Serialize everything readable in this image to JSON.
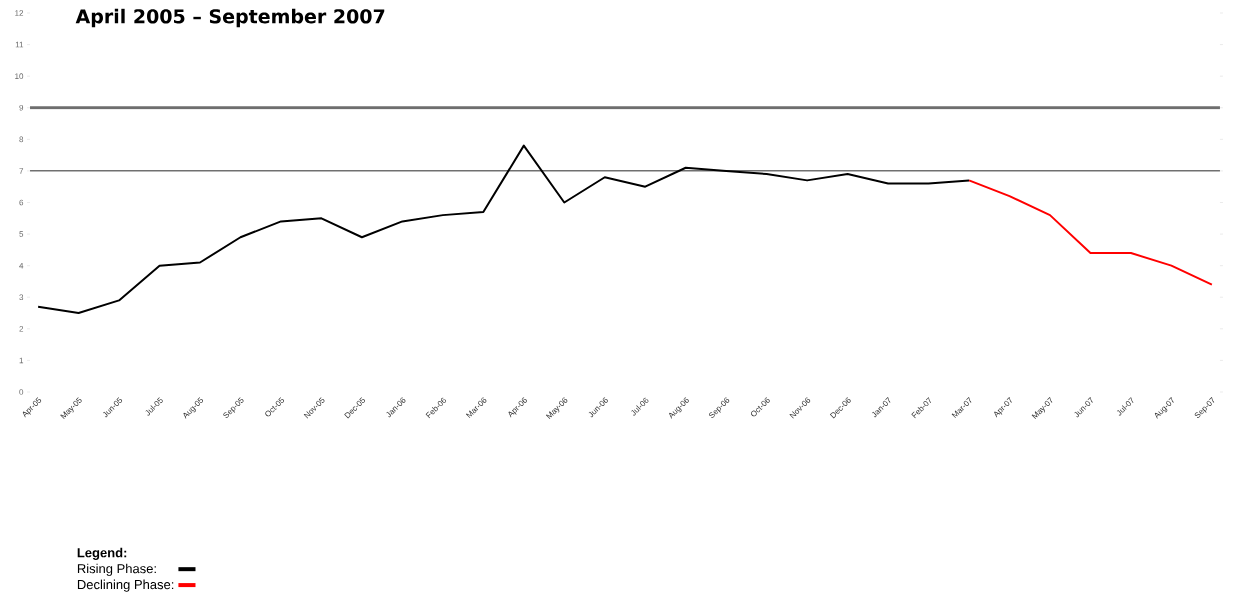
{
  "chart_data": {
    "type": "line",
    "title": "April 2005 – September 2007",
    "categories": [
      "Apr-05",
      "May-05",
      "Jun-05",
      "Jul-05",
      "Aug-05",
      "Sep-05",
      "Oct-05",
      "Nov-05",
      "Dec-05",
      "Jan-06",
      "Feb-06",
      "Mar-06",
      "Apr-06",
      "May-06",
      "Jun-06",
      "Jul-06",
      "Aug-06",
      "Sep-06",
      "Oct-06",
      "Nov-06",
      "Dec-06",
      "Jan-07",
      "Feb-07",
      "Mar-07",
      "Apr-07",
      "May-07",
      "Jun-07",
      "Jul-07",
      "Aug-07",
      "Sep-07"
    ],
    "series": [
      {
        "name": "Rising Phase:",
        "color": "#000000",
        "values": [
          2.7,
          2.5,
          2.9,
          4.0,
          4.1,
          4.9,
          5.4,
          5.5,
          4.9,
          5.4,
          5.6,
          5.7,
          7.8,
          6.0,
          6.8,
          6.5,
          7.1,
          7.0,
          6.9,
          6.7,
          6.9,
          6.6,
          6.6,
          6.7,
          null,
          null,
          null,
          null,
          null,
          null
        ]
      },
      {
        "name": "Declining Phase:",
        "color": "#ff0000",
        "values": [
          null,
          null,
          null,
          null,
          null,
          null,
          null,
          null,
          null,
          null,
          null,
          null,
          null,
          null,
          null,
          null,
          null,
          null,
          null,
          null,
          null,
          null,
          null,
          6.7,
          6.2,
          5.6,
          4.4,
          4.4,
          4.0,
          3.4
        ]
      }
    ],
    "ylim": [
      0,
      12
    ],
    "yticks": [
      0,
      1,
      2,
      3,
      4,
      5,
      6,
      7,
      8,
      9,
      10,
      11,
      12
    ],
    "ref_lines": [
      {
        "axis": "y",
        "value": 9,
        "color": "#6e6e6e"
      },
      {
        "axis": "y",
        "value": 7,
        "color": "#404040"
      }
    ],
    "legend": "bottom left",
    "legend_title": "Legend:",
    "marker": "none",
    "grid": false
  }
}
